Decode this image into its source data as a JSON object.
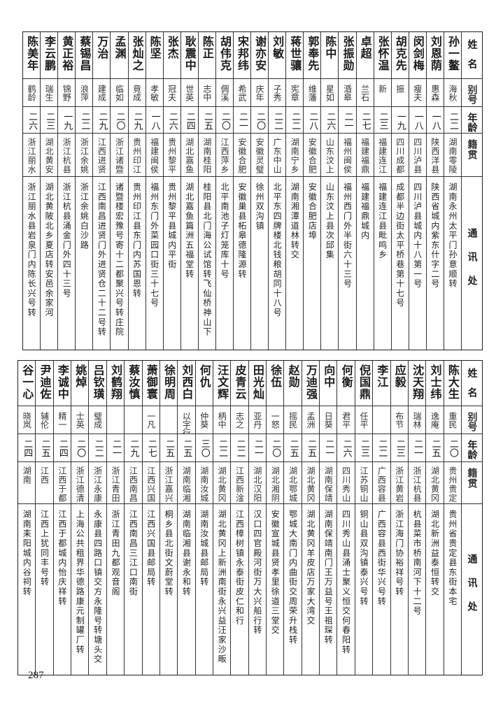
{
  "headers": {
    "name": "姓名",
    "alias": "别号",
    "age": "年龄",
    "origin": "籍贯",
    "address": "通讯处"
  },
  "top_table": [
    {
      "name": "孙一鳌",
      "alias": "海秋",
      "age": "二二",
      "origin": "湖南零陵",
      "address": "湖南永州太平门孙意顺转"
    },
    {
      "name": "刘恩荫",
      "alias": "惠森",
      "age": "一八",
      "origin": "陕西洋县",
      "address": "陕西省城内紫东什字二号"
    },
    {
      "name": "闵剑梅",
      "alias": "瘦夫",
      "age": "一八",
      "origin": "四川泸县",
      "address": "四川泸县城内十八第一号"
    },
    {
      "name": "胡克先",
      "alias": "振",
      "age": "一九",
      "origin": "四川成都",
      "address": "成都半边街太平桥巷第十七号"
    },
    {
      "name": "张怀温",
      "alias": "新",
      "age": "二三",
      "origin": "福建连江",
      "address": "福建连江县毗鸣乡"
    },
    {
      "name": "卓超",
      "alias": "兰石",
      "age": "二七",
      "origin": "福建福鼎",
      "address": "福建福鼎城内"
    },
    {
      "name": "张振勋",
      "alias": "涽皋",
      "age": "二一",
      "origin": "福州闽侯",
      "address": "福州西门外半街六十三号"
    },
    {
      "name": "陈中",
      "alias": "星如",
      "age": "二六",
      "origin": "山东汶上",
      "address": "山东汶上县次邱集"
    },
    {
      "name": "郭奉先",
      "alias": "维藩",
      "age": "二八",
      "origin": "安徽合肥",
      "address": "安徽合肥店埠"
    },
    {
      "name": "蒋世骧",
      "alias": "宪章",
      "age": "二二",
      "origin": "湖南宁乡",
      "address": "湖南湘潭道林转交"
    },
    {
      "name": "刘敏",
      "alias": "子秀",
      "age": "二二",
      "origin": "广东中山",
      "address": "北平东四牌楼北钱粮胡同十八号"
    },
    {
      "name": "谢亦安",
      "alias": "庆年",
      "age": "二〇",
      "origin": "安徽灵璧",
      "address": "徐州双沟镇"
    },
    {
      "name": "宋邦纬",
      "alias": "希武",
      "age": "二一",
      "origin": "安徽合肥",
      "address": "安徽巢县柘皋德隆源转"
    },
    {
      "name": "胡伟克",
      "alias": "倜溪",
      "age": "二〇",
      "origin": "江西萍乡",
      "address": "北平南池子灯笼库十号"
    },
    {
      "name": "陈正",
      "alias": "志中",
      "age": "二五",
      "origin": "湖南桂阳",
      "address": "桂阳县北门海公试馆转飞仙桥神山下"
    },
    {
      "name": "耿震中",
      "alias": "世英",
      "age": "二四",
      "origin": "湖北嘉鱼",
      "address": "湖北嘉鱼篇洲五福堂转"
    },
    {
      "name": "张杰",
      "alias": "冠夫",
      "age": "二六",
      "origin": "贵州黎平",
      "address": "贵州黎平县城内平街"
    },
    {
      "name": "陈坚",
      "alias": "孝敏",
      "age": "一八",
      "origin": "福建闽侯",
      "address": "福州东门外菜园口街三十七号"
    },
    {
      "name": "张灿之",
      "alias": "竟成",
      "age": "二九",
      "origin": "贵州印江",
      "address": "贵州印江县东门内苏国恩转"
    },
    {
      "name": "孟渊",
      "alias": "临如",
      "age": "二〇",
      "origin": "浙江诸暨",
      "address": "诸暨楼宏豫号寄十二都聚兴号转庄院"
    },
    {
      "name": "万治",
      "alias": "建成",
      "age": "二九",
      "origin": "江西进贤",
      "address": "江西南昌进贤门外进贤仓二十二号转"
    },
    {
      "name": "蔡锡昌",
      "alias": "浪萍",
      "age": "二二",
      "origin": "浙江余姚",
      "address": "浙江余姚白沙路"
    },
    {
      "name": "黄正裕",
      "alias": "锦野",
      "age": "一九",
      "origin": "浙江杭县",
      "address": "浙江杭县涌金门外四十三号"
    },
    {
      "name": "李云鹏",
      "alias": "瑞生",
      "age": "二三",
      "origin": "湖北黄安",
      "address": "湖北黄陂北乡夏店转安邑余家河"
    },
    {
      "name": "陈美年",
      "alias": "鹤龄",
      "age": "二六",
      "origin": "浙江丽水",
      "address": "浙江丽水县岩泉门内陈长兴号转"
    }
  ],
  "bottom_table": [
    {
      "name": "陈大生",
      "alias": "重民",
      "age": "二〇",
      "origin": "贵州贵定",
      "address": "贵州省贵定县东街本宅"
    },
    {
      "name": "刘士纬",
      "alias": "逸庵",
      "age": "二五",
      "origin": "湖北黄冈",
      "address": "湖北新洲益泰恒转交"
    },
    {
      "name": "沈天翔",
      "alias": "瑞林",
      "age": "二一",
      "origin": "浙江杭县",
      "address": "杭县菜市桥南河下十二号"
    },
    {
      "name": "应毅",
      "alias": "布节",
      "age": "二三",
      "origin": "浙江黄岩",
      "address": "浙江海门协裕祥号转"
    },
    {
      "name": "李江",
      "alias": "",
      "age": "二二",
      "origin": "广西容县",
      "address": "广西容县西街华兴号转"
    },
    {
      "name": "倪国鼎",
      "alias": "任平",
      "age": "二三",
      "origin": "江苏铜山",
      "address": "铜山县双沟镇泰兴号转"
    },
    {
      "name": "何衡",
      "alias": "君平",
      "age": "二六",
      "origin": "四川秀山",
      "address": "四川秀山县涌士聚义恒交何春阳转"
    },
    {
      "name": "向中",
      "alias": "日葵",
      "age": "二一",
      "origin": "湖南保靖",
      "address": "湖南保靖南门王万益号王祖琛转"
    },
    {
      "name": "万迪强",
      "alias": "孟洲",
      "age": "二五",
      "origin": "湖北黄冈",
      "address": "湖北黄冈羊皮店万家大湾交"
    },
    {
      "name": "赵勋",
      "alias": "摇民",
      "age": "二五",
      "origin": "湖北鄂城",
      "address": "鄂城大南门内曲街交周荣升栈转"
    },
    {
      "name": "徐伍",
      "alias": "一怒",
      "age": "二〇",
      "origin": "湖北湘阴",
      "address": "安徽宣城县贤孝里徐道三堂交"
    },
    {
      "name": "田光灿",
      "alias": "亚丹",
      "age": "二一",
      "origin": "湖北汉阳",
      "address": "汉口四官殿河街万大兴船行转"
    },
    {
      "name": "皮青云",
      "alias": "志之",
      "age": "二二",
      "origin": "江西新淦",
      "address": "江西樟树镇永泰街皮仁和行"
    },
    {
      "name": "汪文辉",
      "alias": "柄中",
      "age": "二二",
      "origin": "湖北黄冈",
      "address": "湖北黄冈上新洲南街永兴益汪家沙畈"
    },
    {
      "name": "何仇",
      "alias": "仲葵",
      "age": "三〇",
      "origin": "湖南汝城",
      "address": "湖南汝城县邮局转"
    },
    {
      "name": "刘西白",
      "alias": "以字行",
      "age": "二五",
      "origin": "湖南临湘",
      "address": "湖南临湘县谢永和转"
    },
    {
      "name": "徐明周",
      "alias": "",
      "age": "二五",
      "origin": "浙江嘉兴",
      "address": "桐乡县北街文蔚堂转"
    },
    {
      "name": "萧御寰",
      "alias": "一凡",
      "age": "二七",
      "origin": "江西兴国",
      "address": "江西兴国县邮局转"
    },
    {
      "name": "蔡汝慎",
      "alias": "",
      "age": "二九",
      "origin": "江西南昌",
      "address": "江西南昌三江口南街"
    },
    {
      "name": "刘鹤翔",
      "alias": "",
      "age": "二一",
      "origin": "浙江青田",
      "address": "浙江青田九都观音阁"
    },
    {
      "name": "吕钦璜",
      "alias": "璧成",
      "age": "二二",
      "origin": "浙江永康",
      "address": "永康县四路口镇交方永隆号转塘头交"
    },
    {
      "name": "姚焯",
      "alias": "士英",
      "age": "二〇",
      "origin": "浙江德清",
      "address": "上海公共租界华德路康元制罐厂转"
    },
    {
      "name": "李诚中",
      "alias": "精一",
      "age": "二四",
      "origin": "江西于都",
      "address": "江西于都城内怡庆祥转"
    },
    {
      "name": "尹迪佐",
      "alias": "辅伦",
      "age": "二五",
      "origin": "江西",
      "address": "江西上犹同丰号转"
    },
    {
      "name": "谷一心",
      "alias": "晓岚",
      "age": "二四",
      "origin": "湖南",
      "address": "湖南耒阳城内谷祠转"
    }
  ],
  "page_number": "287"
}
